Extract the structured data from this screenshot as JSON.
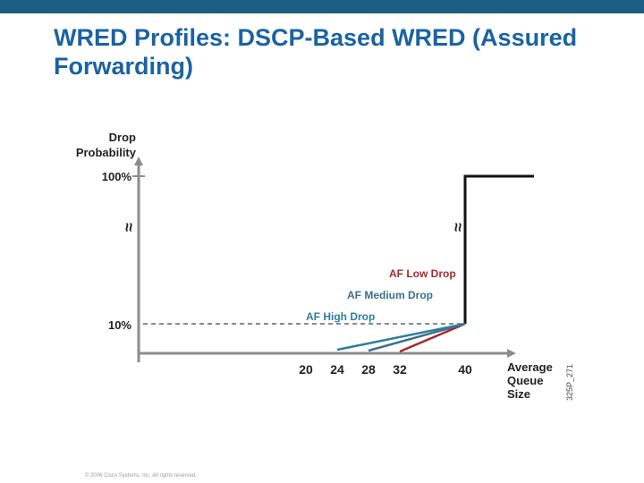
{
  "slide": {
    "title": "WRED Profiles: DSCP-Based WRED (Assured Forwarding)",
    "footer": "© 2006 Cisco Systems, Inc. All rights reserved."
  },
  "colors": {
    "top_bar": "#1c5f84",
    "title": "#1a63a3",
    "axis": "#8c8c8c",
    "af_low": "#a52a2a",
    "af_medium": "#3d6f8c",
    "af_high": "#2f7e9e",
    "threshold": "#8c8c8c",
    "max_line": "#111111"
  },
  "chart_data": {
    "type": "line",
    "title": "",
    "ylabel": [
      "Drop",
      "Probability"
    ],
    "xlabel": [
      "Average",
      "Queue",
      "Size"
    ],
    "y_tick_labels": [
      "100%",
      "10%"
    ],
    "x_ticks": [
      20,
      24,
      28,
      32,
      40
    ],
    "axis_break_symbol": "≈",
    "side_code": "325P_271",
    "threshold_percent": 10,
    "max_threshold": 40,
    "series": [
      {
        "name": "AF Low Drop",
        "x": [
          32,
          40
        ],
        "y": [
          0,
          10
        ]
      },
      {
        "name": "AF Medium Drop",
        "x": [
          28,
          40
        ],
        "y": [
          0,
          10
        ]
      },
      {
        "name": "AF High Drop",
        "x": [
          24,
          40
        ],
        "y": [
          0,
          10
        ]
      }
    ],
    "tail_drop": {
      "x": [
        40,
        40,
        50
      ],
      "y": [
        10,
        100,
        100
      ]
    }
  }
}
